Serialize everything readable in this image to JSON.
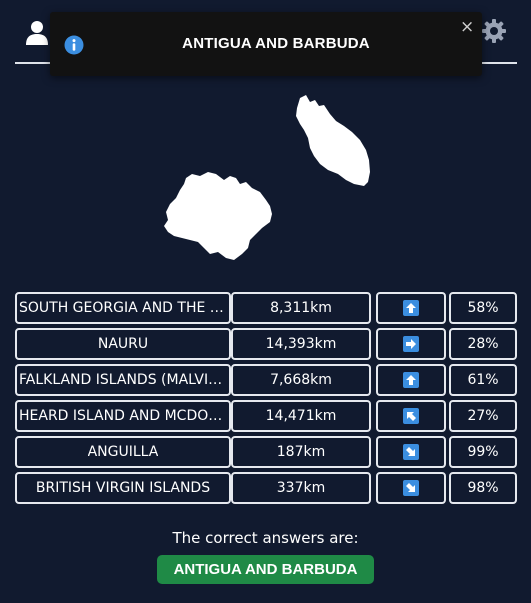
{
  "header": {
    "user_icon": "user-icon",
    "settings_icon": "gear-icon"
  },
  "toast": {
    "icon": "info-icon",
    "title": "ANTIGUA AND BARBUDA",
    "close_label": "×",
    "info_color": "#3b8ee0"
  },
  "map": {
    "country": "Antigua and Barbuda",
    "fill": "#ffffff"
  },
  "guesses": [
    {
      "name": "SOUTH GEORGIA AND THE SOUTH SANDWICH ISLANDS",
      "distance": "8,311km",
      "direction": "up",
      "proximity": "58%"
    },
    {
      "name": "NAURU",
      "distance": "14,393km",
      "direction": "right",
      "proximity": "28%"
    },
    {
      "name": "FALKLAND ISLANDS (MALVINAS)",
      "distance": "7,668km",
      "direction": "up",
      "proximity": "61%"
    },
    {
      "name": "HEARD ISLAND AND MCDONALD ISLANDS",
      "distance": "14,471km",
      "direction": "up-left",
      "proximity": "27%"
    },
    {
      "name": "ANGUILLA",
      "distance": "187km",
      "direction": "down-right",
      "proximity": "99%"
    },
    {
      "name": "BRITISH VIRGIN ISLANDS",
      "distance": "337km",
      "direction": "down-right",
      "proximity": "98%"
    }
  ],
  "answer": {
    "label": "The correct answers are:",
    "value": "ANTIGUA AND BARBUDA",
    "color": "#1f8a46"
  },
  "colors": {
    "background": "#111a2f",
    "border": "#e6e9ef",
    "arrow": "#3b8ee0"
  }
}
